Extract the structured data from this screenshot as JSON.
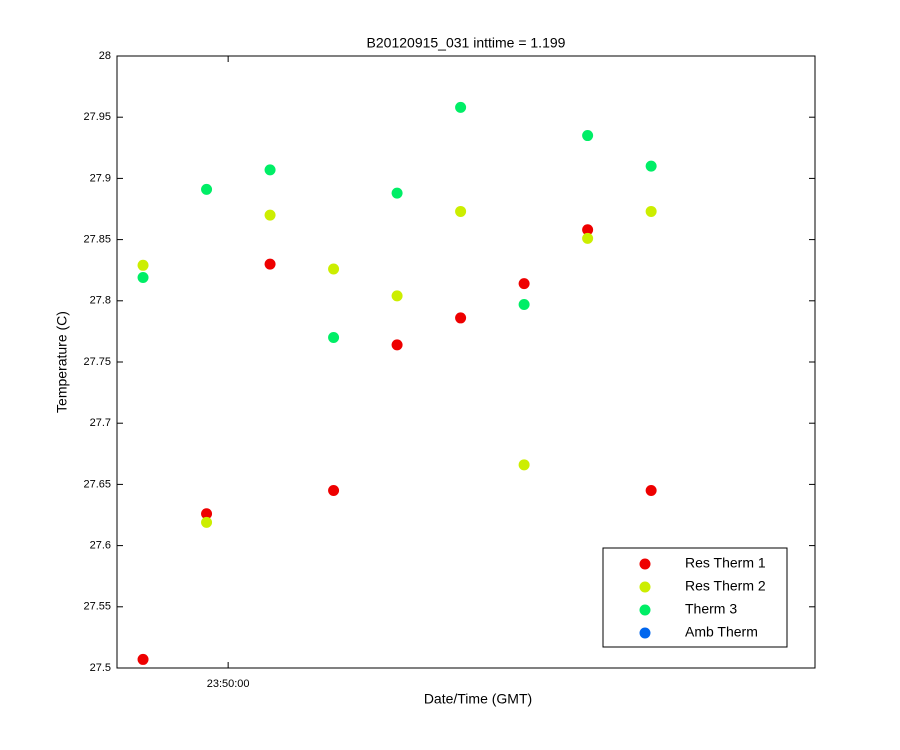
{
  "chart_data": {
    "type": "scatter",
    "title": "B20120915_031 inttime = 1.199",
    "x_label": "Date/Time (GMT)",
    "y_label": "Temperature (C)",
    "x": [
      85786.6,
      85796.6,
      85806.6,
      85816.6,
      85826.6,
      85836.6,
      85846.6,
      85856.6,
      85866.6
    ],
    "series": [
      {
        "name": "Res Therm 1",
        "color": "#ee0000",
        "values": [
          27.507,
          27.626,
          27.83,
          27.645,
          27.764,
          27.786,
          27.814,
          27.858,
          27.645
        ]
      },
      {
        "name": "Res Therm 2",
        "color": "#ccee00",
        "values": [
          27.829,
          27.619,
          27.87,
          27.826,
          27.804,
          27.873,
          27.666,
          27.851,
          27.873
        ]
      },
      {
        "name": "Therm 3",
        "color": "#00ee66",
        "values": [
          27.819,
          27.891,
          27.907,
          27.77,
          27.888,
          27.958,
          27.797,
          27.935,
          27.91
        ]
      },
      {
        "name": "Amb Therm",
        "color": "#0066ee",
        "values": [
          null,
          null,
          null,
          null,
          null,
          null,
          null,
          null,
          null
        ]
      }
    ],
    "xlim": [
      85782.5,
      85892.4
    ],
    "xticks": [
      {
        "value": 85800,
        "label": "23:50:00"
      }
    ],
    "ylim": [
      27.5,
      28
    ],
    "yticks": [
      27.5,
      27.55,
      27.6,
      27.65,
      27.7,
      27.75,
      27.8,
      27.85,
      27.9,
      27.95,
      28
    ],
    "grid": false,
    "legend": "lower right"
  }
}
